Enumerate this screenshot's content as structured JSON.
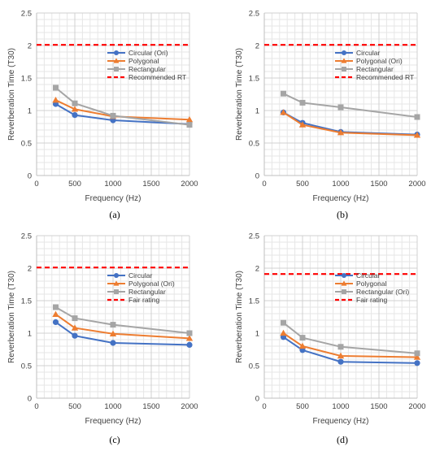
{
  "colors": {
    "circular": "#4472c4",
    "polygonal": "#ed7d31",
    "rectangular": "#a5a5a5",
    "reference": "#ff0000",
    "grid": "#e6e6e6"
  },
  "chart_data": [
    {
      "type": "line",
      "panel": "(a)",
      "xlabel": "Frequency (Hz)",
      "ylabel": "Reverberation Time (T30)",
      "xlim": [
        0,
        2000
      ],
      "ylim": [
        0,
        2.5
      ],
      "xticks": [
        0,
        500,
        1000,
        1500,
        2000
      ],
      "yticks": [
        0,
        0.5,
        1,
        1.5,
        2,
        2.5
      ],
      "grid": true,
      "legend_position": "right",
      "x": [
        250,
        500,
        1000,
        2000
      ],
      "series": [
        {
          "name": "Circular (Ori)",
          "color": "#4472c4",
          "marker": "circle",
          "values": [
            1.1,
            0.93,
            0.85,
            0.79
          ]
        },
        {
          "name": "Polygonal",
          "color": "#ed7d31",
          "marker": "triangle",
          "values": [
            1.16,
            1.02,
            0.91,
            0.86
          ]
        },
        {
          "name": "Rectangular",
          "color": "#a5a5a5",
          "marker": "square",
          "values": [
            1.35,
            1.11,
            0.92,
            0.78
          ]
        },
        {
          "name": "Recommended RT",
          "color": "#ff0000",
          "marker": "none",
          "dashed": true,
          "x": [
            0,
            2000
          ],
          "values": [
            2.01,
            2.01
          ]
        }
      ]
    },
    {
      "type": "line",
      "panel": "(b)",
      "xlabel": "Frequency (Hz)",
      "ylabel": "Reverberation Time (T30)",
      "xlim": [
        0,
        2000
      ],
      "ylim": [
        0,
        2.5
      ],
      "xticks": [
        0,
        500,
        1000,
        1500,
        2000
      ],
      "yticks": [
        0,
        0.5,
        1,
        1.5,
        2,
        2.5
      ],
      "grid": true,
      "legend_position": "right",
      "x": [
        250,
        500,
        1000,
        2000
      ],
      "series": [
        {
          "name": "Circular",
          "color": "#4472c4",
          "marker": "circle",
          "values": [
            0.97,
            0.81,
            0.67,
            0.63
          ]
        },
        {
          "name": "Polygonal (Ori)",
          "color": "#ed7d31",
          "marker": "triangle",
          "values": [
            0.97,
            0.78,
            0.66,
            0.62
          ]
        },
        {
          "name": "Rectangular",
          "color": "#a5a5a5",
          "marker": "square",
          "values": [
            1.26,
            1.12,
            1.05,
            0.9
          ]
        },
        {
          "name": "Recommended RT",
          "color": "#ff0000",
          "marker": "none",
          "dashed": true,
          "x": [
            0,
            2000
          ],
          "values": [
            2.01,
            2.01
          ]
        }
      ]
    },
    {
      "type": "line",
      "panel": "(c)",
      "xlabel": "Frequency (Hz)",
      "ylabel": "Reverberation Time (T30)",
      "xlim": [
        0,
        2000
      ],
      "ylim": [
        0,
        2.5
      ],
      "xticks": [
        0,
        500,
        1000,
        1500,
        2000
      ],
      "yticks": [
        0,
        0.5,
        1,
        1.5,
        2,
        2.5
      ],
      "grid": true,
      "legend_position": "right",
      "x": [
        250,
        500,
        1000,
        2000
      ],
      "series": [
        {
          "name": "Circular",
          "color": "#4472c4",
          "marker": "circle",
          "values": [
            1.17,
            0.96,
            0.85,
            0.82
          ]
        },
        {
          "name": "Polygonal (Ori)",
          "color": "#ed7d31",
          "marker": "triangle",
          "values": [
            1.29,
            1.08,
            0.99,
            0.92
          ]
        },
        {
          "name": "Rectangular",
          "color": "#a5a5a5",
          "marker": "square",
          "values": [
            1.4,
            1.23,
            1.13,
            1.0
          ]
        },
        {
          "name": "Fair rating",
          "color": "#ff0000",
          "marker": "none",
          "dashed": true,
          "x": [
            0,
            2000
          ],
          "values": [
            2.01,
            2.01
          ]
        }
      ]
    },
    {
      "type": "line",
      "panel": "(d)",
      "xlabel": "Frequency (Hz)",
      "ylabel": "Reverberation Time (T30)",
      "xlim": [
        0,
        2000
      ],
      "ylim": [
        0,
        2.5
      ],
      "xticks": [
        0,
        500,
        1000,
        1500,
        2000
      ],
      "yticks": [
        0,
        0.5,
        1,
        1.5,
        2,
        2.5
      ],
      "grid": true,
      "legend_position": "right",
      "x": [
        250,
        500,
        1000,
        2000
      ],
      "series": [
        {
          "name": "Circular",
          "color": "#4472c4",
          "marker": "circle",
          "values": [
            0.94,
            0.74,
            0.56,
            0.54
          ]
        },
        {
          "name": "Polygonal",
          "color": "#ed7d31",
          "marker": "triangle",
          "values": [
            1.0,
            0.8,
            0.65,
            0.63
          ]
        },
        {
          "name": "Rectangular (Ori)",
          "color": "#a5a5a5",
          "marker": "square",
          "values": [
            1.16,
            0.93,
            0.79,
            0.69
          ]
        },
        {
          "name": "Fair rating",
          "color": "#ff0000",
          "marker": "none",
          "dashed": true,
          "x": [
            0,
            2000
          ],
          "values": [
            1.91,
            1.91
          ]
        }
      ]
    }
  ]
}
